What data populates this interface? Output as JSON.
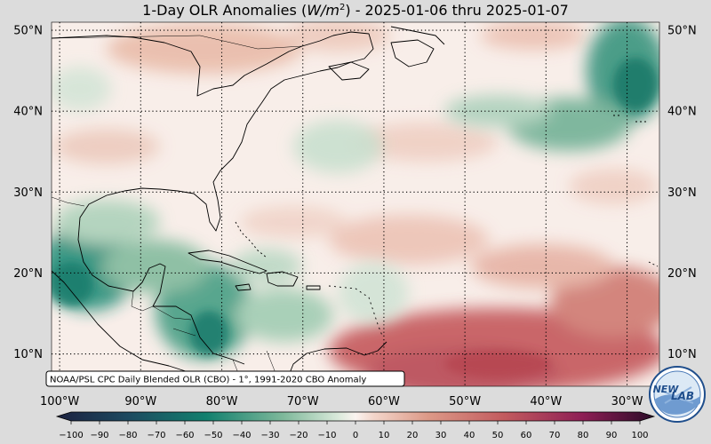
{
  "title": {
    "prefix": "1-Day OLR Anomalies (",
    "unit_main": "W/m",
    "unit_exp": "2",
    "suffix": ") - 2025-01-06 thru 2025-01-07"
  },
  "map": {
    "lon_range": [
      -101,
      -26
    ],
    "lat_range": [
      6,
      51
    ],
    "lat_ticks": [
      {
        "value": 50,
        "label": "50°N"
      },
      {
        "value": 40,
        "label": "40°N"
      },
      {
        "value": 30,
        "label": "30°N"
      },
      {
        "value": 20,
        "label": "20°N"
      },
      {
        "value": 10,
        "label": "10°N"
      }
    ],
    "lon_ticks": [
      {
        "value": -100,
        "label": "100°W"
      },
      {
        "value": -90,
        "label": "90°W"
      },
      {
        "value": -80,
        "label": "80°W"
      },
      {
        "value": -70,
        "label": "70°W"
      },
      {
        "value": -60,
        "label": "60°W"
      },
      {
        "value": -50,
        "label": "50°W"
      },
      {
        "value": -40,
        "label": "40°W"
      },
      {
        "value": -30,
        "label": "30°W"
      }
    ],
    "gridlines": "dotted"
  },
  "source_note": "NOAA/PSL CPC Daily Blended OLR (CBO) - 1°, 1991-2020 CBO Anomaly",
  "colorbar": {
    "min": -100,
    "max": 100,
    "ticks": [
      -100,
      -90,
      -80,
      -70,
      -60,
      -50,
      -40,
      -30,
      -20,
      -10,
      0,
      10,
      20,
      30,
      40,
      50,
      60,
      70,
      80,
      90,
      100
    ],
    "tick_labels": [
      "−100",
      "−90",
      "−80",
      "−70",
      "−60",
      "−50",
      "−40",
      "−30",
      "−20",
      "−10",
      "0",
      "10",
      "20",
      "30",
      "40",
      "50",
      "60",
      "70",
      "80",
      "90",
      "100"
    ],
    "colors": [
      "#1a1f3d",
      "#0f7a70",
      "#f7efeb",
      "#c45a5a",
      "#6e1040",
      "#2a0a25"
    ]
  },
  "logo": {
    "text_a": "NEW",
    "text_b": "LAB",
    "ring_color": "#1f4e8c"
  },
  "colors": {
    "background": "#dcdcdc",
    "neutral": "#f8eee9",
    "negative": "#15806f",
    "positive": "#c86262"
  }
}
